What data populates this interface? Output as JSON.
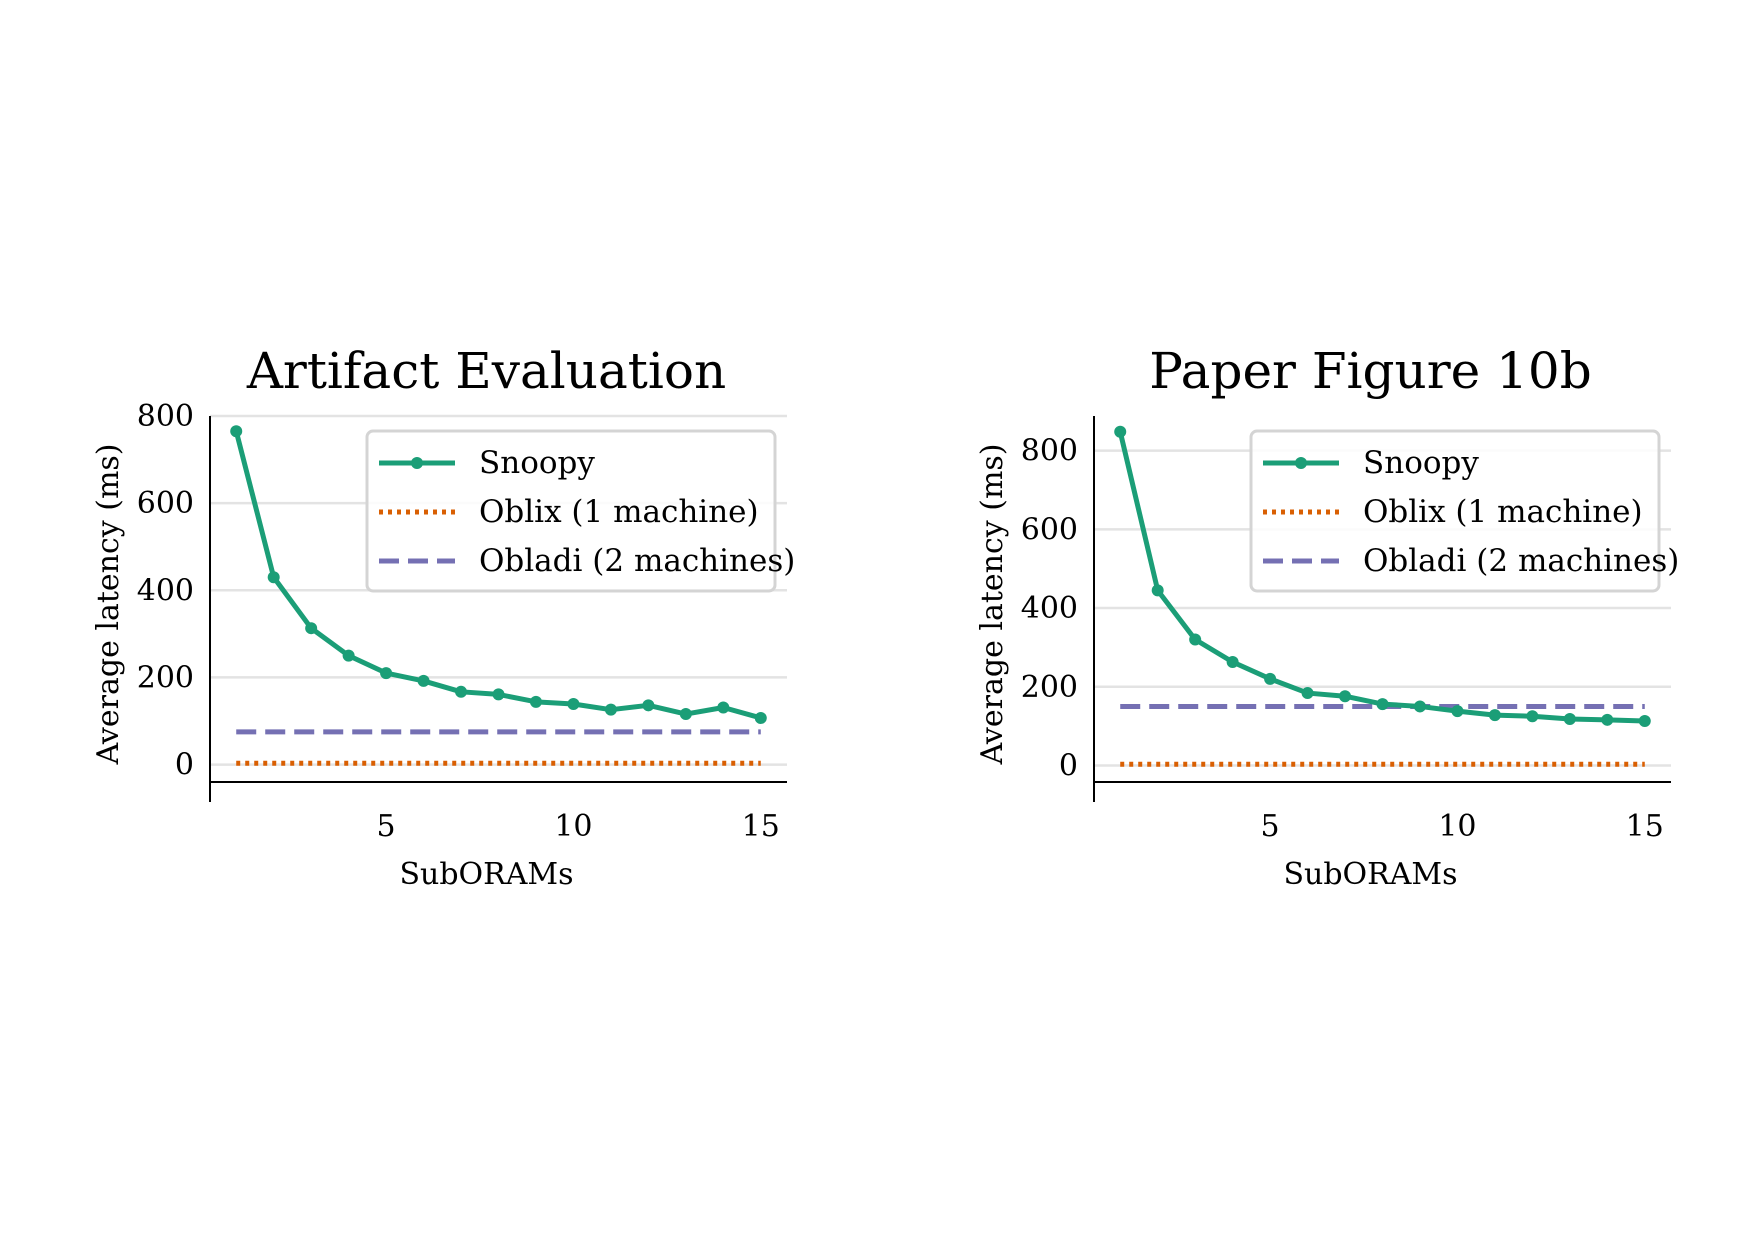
{
  "chart_data": [
    {
      "type": "line",
      "title": "Artifact Evaluation",
      "xlabel": "SubORAMs",
      "ylabel": "Average latency (ms)",
      "xlim": [
        0.3,
        15.7
      ],
      "ylim": [
        -40,
        800
      ],
      "xticks": [
        5,
        10,
        15
      ],
      "yticks": [
        0,
        200,
        400,
        600,
        800
      ],
      "grid": "horizontal",
      "legend_position": "top-right",
      "series": [
        {
          "name": "Snoopy",
          "style": "solid-marker",
          "color": "#1b9e77",
          "x": [
            1,
            2,
            3,
            4,
            5,
            6,
            7,
            8,
            9,
            10,
            11,
            12,
            13,
            14,
            15
          ],
          "y": [
            765,
            430,
            313,
            250,
            210,
            192,
            167,
            161,
            144,
            139,
            126,
            136,
            116,
            131,
            107
          ]
        },
        {
          "name": "Oblix (1 machine)",
          "style": "dotted",
          "color": "#d95f02",
          "x": [
            1,
            15
          ],
          "y": [
            3,
            3
          ]
        },
        {
          "name": "Obladi (2 machines)",
          "style": "dashed",
          "color": "#7570b3",
          "x": [
            1,
            15
          ],
          "y": [
            75,
            75
          ]
        }
      ]
    },
    {
      "type": "line",
      "title": "Paper Figure 10b",
      "xlabel": "SubORAMs",
      "ylabel": "Average latency (ms)",
      "xlim": [
        0.3,
        15.7
      ],
      "ylim": [
        -42,
        888
      ],
      "xticks": [
        5,
        10,
        15
      ],
      "yticks": [
        0,
        200,
        400,
        600,
        800
      ],
      "grid": "horizontal",
      "legend_position": "top-right",
      "series": [
        {
          "name": "Snoopy",
          "style": "solid-marker",
          "color": "#1b9e77",
          "x": [
            1,
            2,
            3,
            4,
            5,
            6,
            7,
            8,
            9,
            10,
            11,
            12,
            13,
            14,
            15
          ],
          "y": [
            848,
            445,
            320,
            263,
            220,
            184,
            176,
            156,
            150,
            138,
            128,
            125,
            118,
            116,
            113
          ]
        },
        {
          "name": "Oblix (1 machine)",
          "style": "dotted",
          "color": "#d95f02",
          "x": [
            1,
            15
          ],
          "y": [
            3,
            3
          ]
        },
        {
          "name": "Obladi (2 machines)",
          "style": "dashed",
          "color": "#7570b3",
          "x": [
            1,
            15
          ],
          "y": [
            150,
            150
          ]
        }
      ]
    }
  ]
}
